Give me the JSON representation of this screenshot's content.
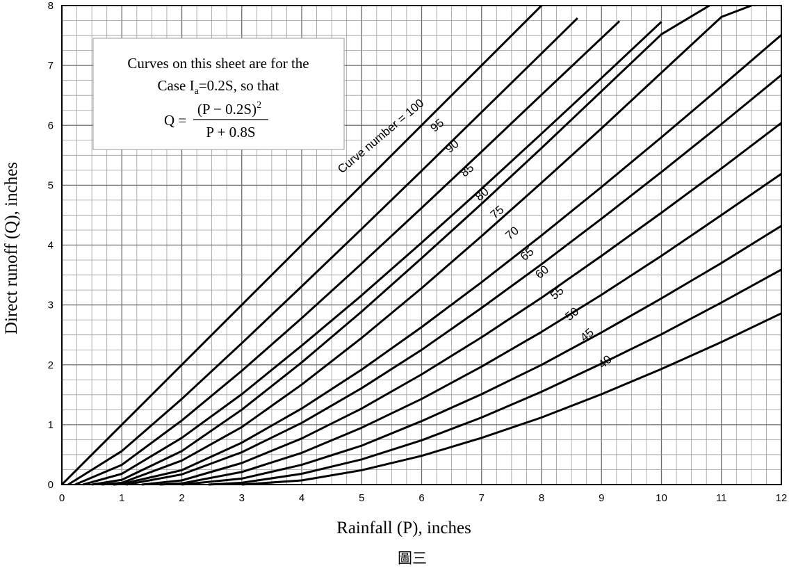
{
  "chart_data": {
    "type": "line",
    "xlabel": "Rainfall (P), inches",
    "ylabel": "Direct runoff (Q), inches",
    "caption": "圖三",
    "xlim": [
      0,
      12
    ],
    "ylim": [
      0,
      8
    ],
    "x_ticks": [
      "0",
      "1",
      "2",
      "3",
      "4",
      "5",
      "6",
      "7",
      "8",
      "9",
      "10",
      "11",
      "12"
    ],
    "y_ticks": [
      "0",
      "1",
      "2",
      "3",
      "4",
      "5",
      "6",
      "7",
      "8"
    ],
    "grid": true,
    "minor_grid_per_unit": 4,
    "formula": "Q = (P - 0.2S)^2 / (P + 0.8S)",
    "note": {
      "line1": "Curves on this sheet are for the",
      "line2_prefix": "Case I",
      "line2_sub": "a",
      "line2_suffix": "=0.2S, so that",
      "eq_lhs": "Q =",
      "eq_num": "(P − 0.2S)",
      "eq_exp": "2",
      "eq_den": "P + 0.8S"
    },
    "curve_label_prefix": "Curve number = ",
    "series": [
      {
        "name": "100",
        "label": "Curve number = 100",
        "cn": 100,
        "x": [
          0,
          8
        ],
        "y": [
          0,
          8
        ]
      },
      {
        "name": "95",
        "label": "95",
        "cn": 95,
        "x": [
          0.105,
          1,
          2,
          3,
          4,
          5,
          6,
          7,
          8,
          8.6
        ],
        "y": [
          0,
          0.56,
          1.43,
          2.36,
          3.31,
          4.27,
          5.24,
          6.22,
          7.2,
          7.79
        ]
      },
      {
        "name": "90",
        "label": "90",
        "cn": 90,
        "x": [
          0.222,
          1,
          2,
          3,
          4,
          5,
          6,
          7,
          8,
          9.3
        ],
        "y": [
          0,
          0.33,
          1.07,
          1.9,
          2.78,
          3.69,
          4.62,
          5.56,
          6.51,
          7.74
        ]
      },
      {
        "name": "85",
        "label": "85",
        "cn": 85,
        "x": [
          0.353,
          1,
          2,
          3,
          4,
          5,
          6,
          7,
          8,
          9,
          10.0
        ],
        "y": [
          0,
          0.18,
          0.78,
          1.51,
          2.32,
          3.16,
          4.04,
          4.94,
          5.86,
          6.79,
          7.73
        ]
      },
      {
        "name": "80",
        "label": "80",
        "cn": 80,
        "x": [
          0.5,
          1,
          2,
          3,
          4,
          5,
          6,
          7,
          8,
          9,
          10,
          10.8
        ],
        "y": [
          0,
          0.08,
          0.56,
          1.25,
          2.04,
          2.89,
          3.78,
          4.69,
          5.62,
          6.57,
          7.52,
          8.0
        ]
      },
      {
        "name": "75",
        "label": "75",
        "cn": 75,
        "x": [
          0.667,
          1,
          2,
          3,
          4,
          5,
          6,
          7,
          8,
          9,
          10,
          11,
          11.5
        ],
        "y": [
          0,
          0.03,
          0.4,
          0.96,
          1.67,
          2.45,
          3.28,
          4.15,
          5.04,
          5.95,
          6.88,
          7.81,
          8.0
        ]
      },
      {
        "name": "70",
        "label": "70",
        "cn": 70,
        "x": [
          0.857,
          1,
          2,
          3,
          4,
          5,
          6,
          7,
          8,
          9,
          10,
          11,
          12
        ],
        "y": [
          0,
          0.01,
          0.24,
          0.7,
          1.27,
          1.92,
          2.63,
          3.38,
          4.16,
          4.97,
          5.8,
          6.65,
          7.51
        ]
      },
      {
        "name": "65",
        "label": "65",
        "cn": 65,
        "x": [
          1.077,
          2,
          3,
          4,
          5,
          6,
          7,
          8,
          9,
          10,
          11,
          12
        ],
        "y": [
          0,
          0.17,
          0.54,
          1.03,
          1.61,
          2.25,
          2.95,
          3.68,
          4.44,
          5.22,
          6.02,
          6.84
        ]
      },
      {
        "name": "60",
        "label": "60",
        "cn": 60,
        "x": [
          1.333,
          2,
          3,
          4,
          5,
          6,
          7,
          8,
          9,
          10,
          11,
          12
        ],
        "y": [
          0,
          0.07,
          0.36,
          0.77,
          1.27,
          1.84,
          2.46,
          3.12,
          3.82,
          4.54,
          5.28,
          6.04
        ]
      },
      {
        "name": "55",
        "label": "55",
        "cn": 55,
        "x": [
          1.636,
          2,
          3,
          4,
          5,
          6,
          7,
          8,
          9,
          10,
          11,
          12
        ],
        "y": [
          0,
          0.02,
          0.21,
          0.53,
          0.95,
          1.43,
          1.97,
          2.55,
          3.17,
          3.82,
          4.5,
          5.19
        ]
      },
      {
        "name": "50",
        "label": "50",
        "cn": 50,
        "x": [
          2.0,
          3,
          4,
          5,
          6,
          7,
          8,
          9,
          10,
          11,
          12
        ],
        "y": [
          0,
          0.1,
          0.33,
          0.65,
          1.06,
          1.51,
          2.0,
          2.54,
          3.11,
          3.7,
          4.32
        ]
      },
      {
        "name": "45",
        "label": "45",
        "cn": 45,
        "x": [
          2.444,
          3,
          4,
          5,
          6,
          7,
          8,
          9,
          10,
          11,
          12
        ],
        "y": [
          0,
          0.03,
          0.18,
          0.42,
          0.74,
          1.12,
          1.55,
          2.02,
          2.51,
          3.04,
          3.59
        ]
      },
      {
        "name": "40",
        "label": "40",
        "cn": 40,
        "x": [
          3.0,
          4,
          5,
          6,
          7,
          8,
          9,
          10,
          11,
          12
        ],
        "y": [
          0,
          0.07,
          0.24,
          0.48,
          0.78,
          1.12,
          1.51,
          1.93,
          2.38,
          2.86
        ]
      }
    ],
    "label_positions": [
      {
        "name": "100",
        "x": 6.05,
        "y": 6.35
      },
      {
        "name": "95",
        "x": 6.3,
        "y": 5.95
      },
      {
        "name": "90",
        "x": 6.55,
        "y": 5.6
      },
      {
        "name": "85",
        "x": 6.8,
        "y": 5.2
      },
      {
        "name": "80",
        "x": 7.05,
        "y": 4.8
      },
      {
        "name": "75",
        "x": 7.3,
        "y": 4.5
      },
      {
        "name": "70",
        "x": 7.55,
        "y": 4.15
      },
      {
        "name": "65",
        "x": 7.8,
        "y": 3.8
      },
      {
        "name": "60",
        "x": 8.05,
        "y": 3.5
      },
      {
        "name": "55",
        "x": 8.3,
        "y": 3.15
      },
      {
        "name": "50",
        "x": 8.55,
        "y": 2.8
      },
      {
        "name": "45",
        "x": 8.8,
        "y": 2.45
      },
      {
        "name": "40",
        "x": 9.1,
        "y": 2.0
      }
    ]
  }
}
